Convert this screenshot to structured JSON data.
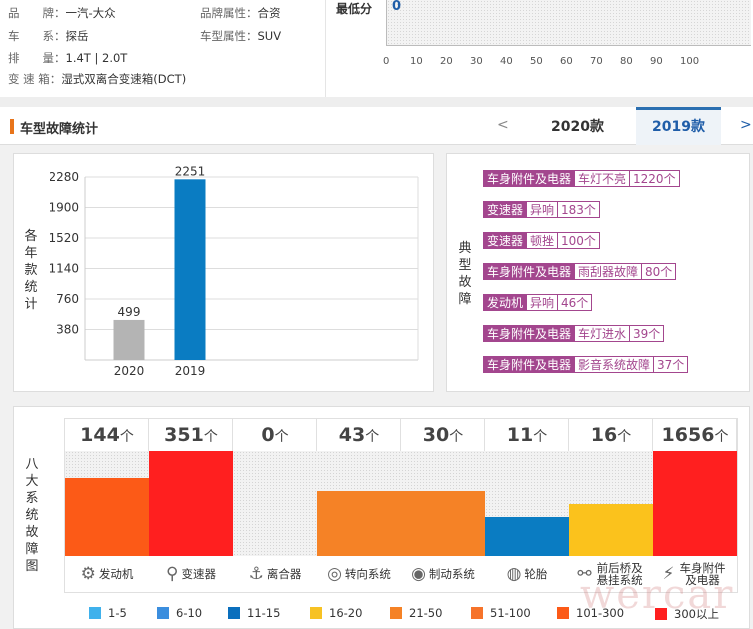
{
  "info": {
    "brand_label": "品　　牌：",
    "brand": "一汽-大众",
    "brand_attr_label": "品牌属性：",
    "brand_attr": "合资",
    "series_label": "车　　系：",
    "series": "探岳",
    "type_label": "车型属性：",
    "type": "SUV",
    "disp_label": "排　　量：",
    "disp": "1.4T | 2.0T",
    "gear_label": "变 速 箱：",
    "gear": "湿式双离合变速箱(DCT)"
  },
  "minscore": {
    "label": "最低分",
    "value": "0",
    "ticks": [
      "0",
      "10",
      "20",
      "30",
      "40",
      "50",
      "60",
      "70",
      "80",
      "90",
      "100"
    ]
  },
  "header": {
    "title": "车型故障统计",
    "prev": "<",
    "next": ">",
    "tabs": [
      "2020款",
      "2019款"
    ]
  },
  "chart_data": {
    "type": "bar",
    "categories": [
      "2020",
      "2019"
    ],
    "values": [
      499,
      2251
    ],
    "ylabel": "各年款统计",
    "yticks": [
      380,
      760,
      1140,
      1520,
      1900,
      2280
    ],
    "ylim": [
      0,
      2280
    ],
    "colors": [
      "#b4b4b4",
      "#0a7cc2"
    ]
  },
  "faults_label": "典型故障",
  "faults": [
    {
      "sys": "车身附件及电器",
      "issue": "车灯不亮",
      "count": "1220个"
    },
    {
      "sys": "变速器",
      "issue": "异响",
      "count": "183个"
    },
    {
      "sys": "变速器",
      "issue": "顿挫",
      "count": "100个"
    },
    {
      "sys": "车身附件及电器",
      "issue": "雨刮器故障",
      "count": "80个"
    },
    {
      "sys": "发动机",
      "issue": "异响",
      "count": "46个"
    },
    {
      "sys": "车身附件及电器",
      "issue": "车灯进水",
      "count": "39个"
    },
    {
      "sys": "车身附件及电器",
      "issue": "影音系统故障",
      "count": "37个"
    }
  ],
  "systems_label": "八大系统故障图",
  "unit": "个",
  "systems": [
    {
      "name": "发动机",
      "count": "144",
      "level": 0.74,
      "color": "#fc5a17",
      "icon": "engine-icon",
      "glyph": "⚙"
    },
    {
      "name": "变速器",
      "count": "351",
      "level": 1.0,
      "color": "#ff1f1f",
      "icon": "gearshift-icon",
      "glyph": "⚲"
    },
    {
      "name": "离合器",
      "count": "0",
      "level": 0,
      "color": "#ffffff",
      "icon": "clutch-icon",
      "glyph": "⚓"
    },
    {
      "name": "转向系统",
      "count": "43",
      "level": 0.62,
      "color": "#f58226",
      "icon": "steering-wheel-icon",
      "glyph": "◎"
    },
    {
      "name": "制动系统",
      "count": "30",
      "level": 0.62,
      "color": "#f58226",
      "icon": "brake-icon",
      "glyph": "◉"
    },
    {
      "name": "轮胎",
      "count": "11",
      "level": 0.37,
      "color": "#0a7cc2",
      "icon": "tire-icon",
      "glyph": "◍"
    },
    {
      "name": "前后桥及悬挂系统",
      "count": "16",
      "level": 0.5,
      "color": "#fbc21c",
      "icon": "suspension-icon",
      "glyph": "⚯"
    },
    {
      "name": "车身附件及电器",
      "count": "1656",
      "level": 1.0,
      "color": "#ff1f1f",
      "icon": "body-electrical-icon",
      "glyph": "⚡"
    }
  ],
  "legend": [
    {
      "label": "1-5",
      "color": "#3fb1ec"
    },
    {
      "label": "6-10",
      "color": "#3b8ede"
    },
    {
      "label": "11-15",
      "color": "#0a6fbd"
    },
    {
      "label": "16-20",
      "color": "#f7c223"
    },
    {
      "label": "21-50",
      "color": "#f58226"
    },
    {
      "label": "51-100",
      "color": "#f6732a"
    },
    {
      "label": "101-300",
      "color": "#fc5a17"
    },
    {
      "label": "300以上",
      "color": "#ff1f1f"
    }
  ],
  "watermark": "wercar"
}
